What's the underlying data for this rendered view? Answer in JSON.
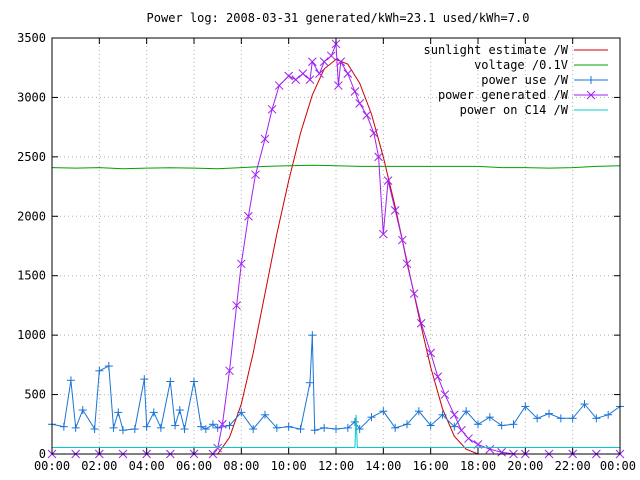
{
  "chart_data": {
    "type": "line",
    "title": "Power log: 2008-03-31 generated/kWh=23.1 used/kWh=7.0",
    "xlabel": "",
    "ylabel": "",
    "xlim": [
      "00:00",
      "24:00"
    ],
    "ylim": [
      0,
      3500
    ],
    "x_ticks": [
      "00:00",
      "02:00",
      "04:00",
      "06:00",
      "08:00",
      "10:00",
      "12:00",
      "14:00",
      "16:00",
      "18:00",
      "20:00",
      "22:00",
      "00:00"
    ],
    "y_ticks": [
      0,
      500,
      1000,
      1500,
      2000,
      2500,
      3000,
      3500
    ],
    "grid": true,
    "legend_position": "top-right",
    "series": [
      {
        "name": "sunlight estimate /W",
        "color": "#cc0000",
        "marker": "none",
        "x": [
          7.0,
          7.5,
          8.0,
          8.5,
          9.0,
          9.5,
          10.0,
          10.5,
          11.0,
          11.5,
          12.0,
          12.5,
          13.0,
          13.5,
          14.0,
          14.5,
          15.0,
          15.5,
          16.0,
          16.5,
          17.0,
          17.5,
          18.0
        ],
        "y": [
          0,
          140,
          420,
          850,
          1350,
          1850,
          2300,
          2700,
          3020,
          3240,
          3320,
          3280,
          3120,
          2860,
          2500,
          2080,
          1620,
          1160,
          730,
          380,
          150,
          40,
          0
        ]
      },
      {
        "name": "voltage /0.1V",
        "color": "#00a000",
        "marker": "none",
        "x": [
          0.0,
          1.0,
          2.0,
          3.0,
          4.0,
          5.0,
          6.0,
          7.0,
          8.0,
          9.0,
          10.0,
          11.0,
          12.0,
          13.0,
          14.0,
          15.0,
          16.0,
          17.0,
          18.0,
          19.0,
          20.0,
          21.0,
          22.0,
          23.0,
          24.0
        ],
        "y": [
          2410,
          2405,
          2410,
          2400,
          2405,
          2408,
          2405,
          2400,
          2410,
          2420,
          2425,
          2430,
          2425,
          2420,
          2420,
          2420,
          2420,
          2420,
          2420,
          2410,
          2410,
          2405,
          2410,
          2420,
          2425
        ]
      },
      {
        "name": "power use /W",
        "color": "#1a74d6",
        "marker": "+",
        "x": [
          0.0,
          0.5,
          0.8,
          1.0,
          1.3,
          1.8,
          2.0,
          2.4,
          2.6,
          2.8,
          3.0,
          3.5,
          3.9,
          4.0,
          4.3,
          4.6,
          5.0,
          5.2,
          5.4,
          5.6,
          6.0,
          6.3,
          6.5,
          6.8,
          7.0,
          7.5,
          8.0,
          8.5,
          9.0,
          9.5,
          10.0,
          10.5,
          10.9,
          11.0,
          11.1,
          11.5,
          12.0,
          12.5,
          12.8,
          13.0,
          13.5,
          14.0,
          14.5,
          15.0,
          15.5,
          16.0,
          16.5,
          17.0,
          17.5,
          18.0,
          18.5,
          19.0,
          19.5,
          20.0,
          20.5,
          21.0,
          21.5,
          22.0,
          22.5,
          23.0,
          23.5,
          24.0
        ],
        "y": [
          250,
          230,
          620,
          220,
          370,
          210,
          700,
          740,
          220,
          350,
          200,
          210,
          630,
          230,
          350,
          220,
          610,
          240,
          370,
          210,
          610,
          230,
          210,
          250,
          220,
          240,
          350,
          210,
          330,
          220,
          230,
          210,
          600,
          1000,
          200,
          220,
          210,
          220,
          270,
          210,
          310,
          360,
          220,
          250,
          360,
          240,
          330,
          230,
          360,
          250,
          310,
          240,
          250,
          400,
          300,
          340,
          300,
          300,
          420,
          300,
          330,
          400
        ]
      },
      {
        "name": "power generated /W",
        "color": "#a020f0",
        "marker": "x",
        "x": [
          0.0,
          1.0,
          2.0,
          3.0,
          4.0,
          5.0,
          6.0,
          6.8,
          7.0,
          7.2,
          7.5,
          7.8,
          8.0,
          8.3,
          8.6,
          9.0,
          9.3,
          9.6,
          10.0,
          10.3,
          10.6,
          10.9,
          11.0,
          11.3,
          11.5,
          11.8,
          12.0,
          12.1,
          12.2,
          12.5,
          12.8,
          13.0,
          13.3,
          13.6,
          13.8,
          14.0,
          14.2,
          14.5,
          14.8,
          15.0,
          15.3,
          15.6,
          16.0,
          16.3,
          16.6,
          17.0,
          17.3,
          17.6,
          18.0,
          18.5,
          19.0,
          19.5,
          20.0,
          21.0,
          22.0,
          23.0,
          24.0
        ],
        "y": [
          0,
          0,
          0,
          0,
          0,
          0,
          0,
          0,
          50,
          250,
          700,
          1250,
          1600,
          2000,
          2350,
          2650,
          2900,
          3100,
          3180,
          3150,
          3200,
          3150,
          3300,
          3200,
          3300,
          3350,
          3450,
          3100,
          3300,
          3200,
          3050,
          2950,
          2850,
          2700,
          2500,
          1850,
          2300,
          2050,
          1800,
          1600,
          1350,
          1100,
          850,
          650,
          500,
          330,
          200,
          130,
          80,
          40,
          15,
          0,
          0,
          0,
          0,
          0,
          0
        ]
      },
      {
        "name": "power on C14 /W",
        "color": "#00cccc",
        "marker": "none",
        "x": [
          0.0,
          2.0,
          4.0,
          6.0,
          8.0,
          10.0,
          12.0,
          12.8,
          12.85,
          12.9,
          14.0,
          16.0,
          18.0,
          20.0,
          22.0,
          24.0
        ],
        "y": [
          55,
          55,
          55,
          55,
          55,
          55,
          55,
          55,
          330,
          55,
          55,
          55,
          55,
          55,
          55,
          55
        ]
      }
    ]
  }
}
